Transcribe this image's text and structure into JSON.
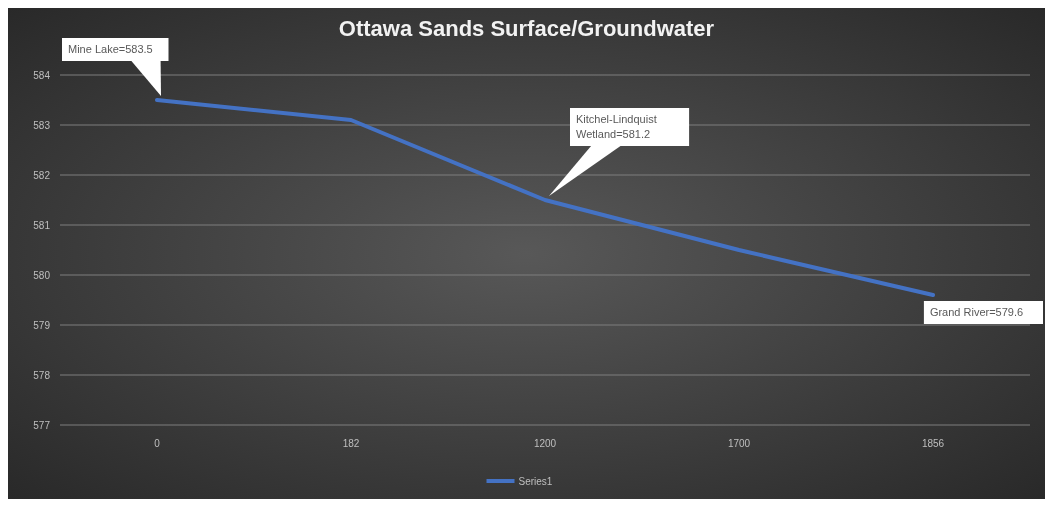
{
  "chart_data": {
    "type": "line",
    "title": "Ottawa Sands Surface/Groundwater",
    "categories": [
      "0",
      "182",
      "1200",
      "1700",
      "1856"
    ],
    "series": [
      {
        "name": "Series1",
        "color": "#4472c4",
        "values": [
          583.5,
          583.1,
          581.5,
          580.5,
          579.6
        ]
      }
    ],
    "ylim": [
      577,
      584
    ],
    "yticks": [
      577,
      578,
      579,
      580,
      581,
      582,
      583,
      584
    ],
    "grid": "y",
    "legend": "bottom",
    "annotations": [
      "Mine Lake=583.5",
      "Kitchel-Lindquist Wetland=581.2",
      "Grand River=579.6"
    ]
  }
}
